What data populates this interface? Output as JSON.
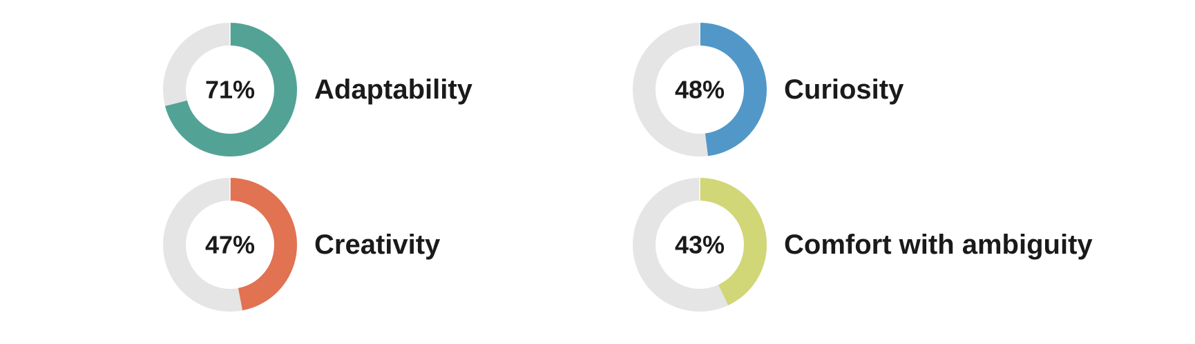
{
  "chart_data": [
    {
      "type": "donut",
      "title": "Adaptability",
      "values": [
        71
      ],
      "value_labels": [
        "71%"
      ],
      "color": "#52a396",
      "ylim": [
        0,
        100
      ]
    },
    {
      "type": "donut",
      "title": "Curiosity",
      "values": [
        48
      ],
      "value_labels": [
        "48%"
      ],
      "color": "#5198c8",
      "ylim": [
        0,
        100
      ]
    },
    {
      "type": "donut",
      "title": "Creativity",
      "values": [
        47
      ],
      "value_labels": [
        "47%"
      ],
      "color": "#e17252",
      "ylim": [
        0,
        100
      ]
    },
    {
      "type": "donut",
      "title": "Comfort with ambiguity",
      "values": [
        43
      ],
      "value_labels": [
        "43%"
      ],
      "color": "#d1d676",
      "ylim": [
        0,
        100
      ]
    }
  ]
}
